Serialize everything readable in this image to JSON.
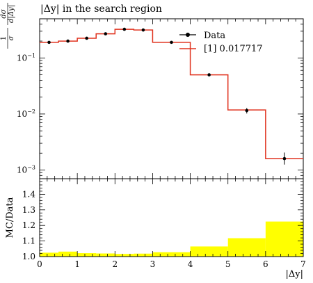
{
  "chart_data": [
    {
      "type": "line",
      "title": "|Δy| in the search region",
      "ylabel_parts": [
        "1",
        "σ",
        "dσ",
        "d|Δy|"
      ],
      "yscale": "log",
      "xlim": [
        0,
        7
      ],
      "ylim": [
        0.0007,
        0.5
      ],
      "ytick_labels": [
        {
          "base": "10",
          "exp": "−1",
          "value": 0.1
        },
        {
          "base": "10",
          "exp": "−2",
          "value": 0.01
        },
        {
          "base": "10",
          "exp": "−3",
          "value": 0.001
        }
      ],
      "legend": {
        "position": "top-right",
        "entries": [
          "Data",
          "[1] 0.017717"
        ]
      },
      "series": [
        {
          "name": "Data",
          "style": "points",
          "color": "#000000",
          "x": [
            0.25,
            0.75,
            1.25,
            1.75,
            2.25,
            2.75,
            3.5,
            4.5,
            5.5,
            6.5
          ],
          "y": [
            0.19,
            0.2,
            0.225,
            0.27,
            0.325,
            0.315,
            0.19,
            0.05,
            0.0115,
            0.0016
          ],
          "yerr_low": [
            0.18,
            0.19,
            0.215,
            0.26,
            0.315,
            0.305,
            0.182,
            0.048,
            0.0102,
            0.00125
          ],
          "yerr_high": [
            0.2,
            0.21,
            0.235,
            0.28,
            0.335,
            0.325,
            0.198,
            0.052,
            0.0128,
            0.00205
          ]
        },
        {
          "name": "[1] 0.017717",
          "style": "histogram",
          "color": "#e0321e",
          "bin_edges": [
            0,
            0.5,
            1,
            1.5,
            2,
            2.5,
            3,
            4,
            5,
            6,
            7
          ],
          "values": [
            0.19,
            0.2,
            0.225,
            0.27,
            0.325,
            0.315,
            0.19,
            0.05,
            0.0118,
            0.0016
          ]
        }
      ]
    },
    {
      "type": "area",
      "ylabel": "MC/Data",
      "xlabel": "|Δy|",
      "xlim": [
        0,
        7
      ],
      "ylim": [
        1.0,
        1.5
      ],
      "xticks": [
        0,
        1,
        2,
        3,
        4,
        5,
        6,
        7
      ],
      "yticks": [
        1.0,
        1.1,
        1.2,
        1.3,
        1.4
      ],
      "ytick_labels": [
        "1.0",
        "1.1",
        "1.2",
        "1.3",
        "1.4"
      ],
      "series": [
        {
          "style": "band",
          "color": "#ffff00",
          "bin_edges": [
            0,
            0.5,
            1,
            1.5,
            2,
            2.5,
            3,
            4,
            5,
            6,
            7
          ],
          "band_low": [
            1.0,
            1.0,
            1.0,
            1.0,
            1.0,
            1.0,
            1.0,
            1.0,
            1.0,
            1.0
          ],
          "band_high": [
            1.025,
            1.032,
            1.022,
            1.02,
            1.017,
            1.019,
            1.028,
            1.065,
            1.118,
            1.225
          ]
        }
      ]
    }
  ]
}
